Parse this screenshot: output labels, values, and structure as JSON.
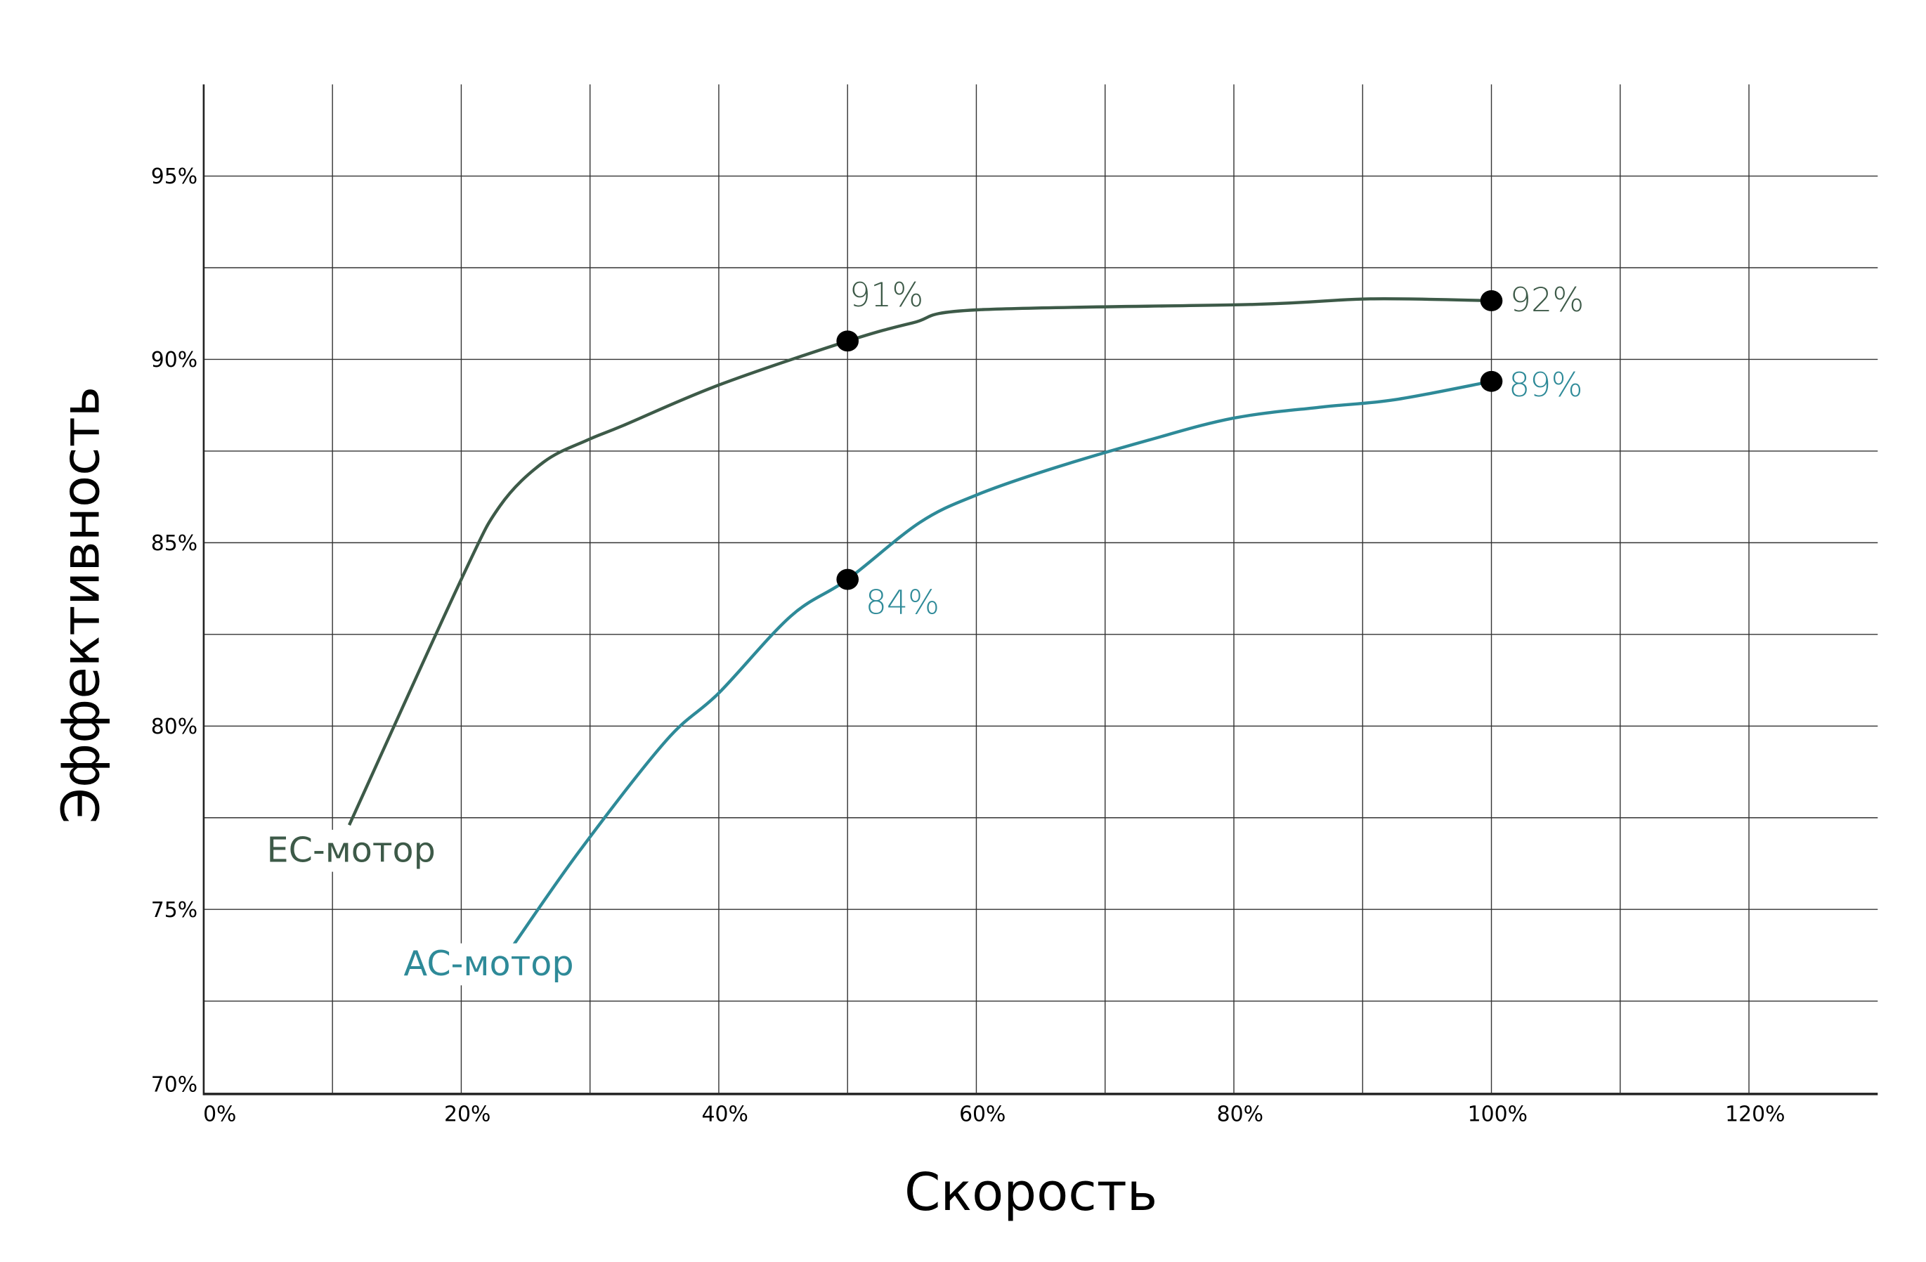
{
  "chart_data": {
    "type": "line",
    "title": "",
    "xlabel": "Скорость",
    "ylabel": "Эффективность",
    "xlim": [
      0,
      130
    ],
    "ylim": [
      69.5,
      97.5
    ],
    "grid": true,
    "x_ticks": [
      "0%",
      "20%",
      "40%",
      "60%",
      "80%",
      "100%",
      "120%"
    ],
    "x_tick_values": [
      0,
      20,
      40,
      60,
      80,
      100,
      120
    ],
    "y_ticks": [
      "70%",
      "75%",
      "80%",
      "85%",
      "90%",
      "95%"
    ],
    "y_tick_values": [
      70,
      75,
      80,
      85,
      90,
      95
    ],
    "series": [
      {
        "name": "EC-мотор",
        "color": "#3d5a48",
        "x": [
          11.3,
          20,
          23,
          26.4,
          29.8,
          32.6,
          40,
          50,
          55.1,
          60,
          81.6,
          90.6,
          100
        ],
        "y": [
          77.3,
          84.0,
          86.0,
          87.2,
          87.8,
          88.2,
          89.3,
          90.5,
          91.0,
          91.35,
          91.5,
          91.65,
          91.6
        ],
        "markers": [
          {
            "x": 50,
            "y": 90.5,
            "label": "91%"
          },
          {
            "x": 100,
            "y": 91.6,
            "label": "92%"
          }
        ]
      },
      {
        "name": "AC-мотор",
        "color": "#2e8a98",
        "x": [
          24,
          29.2,
          35.9,
          40,
          45.6,
          50,
          55.6,
          60,
          65.7,
          73.4,
          80,
          86.8,
          92.5,
          100
        ],
        "y": [
          74.0,
          76.6,
          79.6,
          80.9,
          83.0,
          84.0,
          85.55,
          86.3,
          87.0,
          87.8,
          88.4,
          88.7,
          88.9,
          89.4
        ],
        "markers": [
          {
            "x": 50,
            "y": 84.0,
            "label": "84%"
          },
          {
            "x": 100,
            "y": 89.4,
            "label": "89%"
          }
        ]
      }
    ]
  }
}
